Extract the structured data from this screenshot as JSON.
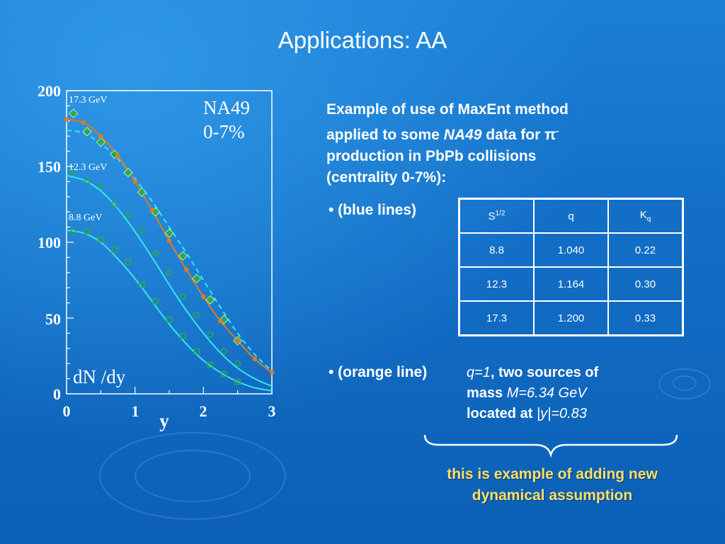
{
  "slide": {
    "title": "Applications: AA"
  },
  "chart_data": {
    "type": "scatter",
    "title": "",
    "xlabel": "y",
    "ylabel": "dN /dy",
    "xlim": [
      0,
      3
    ],
    "ylim": [
      0,
      200
    ],
    "x_ticks": [
      "0",
      "1",
      "2",
      "3"
    ],
    "y_ticks": [
      "0",
      "50",
      "100",
      "150",
      "200"
    ],
    "annotation_lines": [
      "NA49",
      "0-7%"
    ],
    "energy_labels": [
      "17.3 GeV",
      "12.3 GeV",
      "8.8 GeV"
    ],
    "series": [
      {
        "name": "17.3 GeV",
        "marker": "diamond",
        "points": [
          [
            0.1,
            185
          ],
          [
            0.3,
            173
          ],
          [
            0.5,
            166
          ],
          [
            0.7,
            158
          ],
          [
            0.9,
            146
          ],
          [
            1.1,
            133
          ],
          [
            1.3,
            120
          ],
          [
            1.5,
            106
          ],
          [
            1.7,
            91
          ],
          [
            1.9,
            76
          ],
          [
            2.1,
            62
          ],
          [
            2.3,
            49
          ],
          [
            2.5,
            35
          ]
        ],
        "curve": [
          [
            0,
            174
          ],
          [
            0.25,
            172
          ],
          [
            0.5,
            165
          ],
          [
            0.75,
            155
          ],
          [
            1.0,
            142
          ],
          [
            1.25,
            127
          ],
          [
            1.5,
            110
          ],
          [
            1.75,
            93
          ],
          [
            2.0,
            75
          ],
          [
            2.25,
            57
          ],
          [
            2.5,
            40
          ],
          [
            2.75,
            26
          ],
          [
            3.0,
            15
          ]
        ]
      },
      {
        "name": "12.3 GeV",
        "marker": "circle",
        "points": [
          [
            0.1,
            146
          ],
          [
            0.3,
            140
          ],
          [
            0.5,
            137
          ],
          [
            0.7,
            125
          ],
          [
            0.9,
            118
          ],
          [
            1.1,
            108
          ],
          [
            1.3,
            93
          ],
          [
            1.5,
            80
          ],
          [
            1.7,
            64
          ],
          [
            1.9,
            52
          ],
          [
            2.1,
            39
          ],
          [
            2.3,
            28
          ],
          [
            2.5,
            20
          ]
        ],
        "curve": [
          [
            0,
            144
          ],
          [
            0.25,
            141
          ],
          [
            0.5,
            134
          ],
          [
            0.75,
            122
          ],
          [
            1.0,
            107
          ],
          [
            1.25,
            90
          ],
          [
            1.5,
            72
          ],
          [
            1.75,
            55
          ],
          [
            2.0,
            40
          ],
          [
            2.25,
            27
          ],
          [
            2.5,
            17
          ],
          [
            2.75,
            10
          ],
          [
            3.0,
            5
          ]
        ]
      },
      {
        "name": "8.8 GeV",
        "marker": "square",
        "points": [
          [
            0.1,
            107
          ],
          [
            0.3,
            107
          ],
          [
            0.5,
            102
          ],
          [
            0.7,
            95
          ],
          [
            0.9,
            87
          ],
          [
            1.1,
            72
          ],
          [
            1.3,
            61
          ],
          [
            1.5,
            49
          ],
          [
            1.7,
            38
          ],
          [
            1.9,
            28
          ],
          [
            2.1,
            19
          ],
          [
            2.3,
            13
          ],
          [
            2.5,
            8
          ]
        ],
        "curve": [
          [
            0,
            108
          ],
          [
            0.25,
            106
          ],
          [
            0.5,
            100
          ],
          [
            0.75,
            89
          ],
          [
            1.0,
            76
          ],
          [
            1.25,
            61
          ],
          [
            1.5,
            46
          ],
          [
            1.75,
            33
          ],
          [
            2.0,
            22
          ],
          [
            2.25,
            14
          ],
          [
            2.5,
            8
          ],
          [
            2.75,
            4
          ],
          [
            3.0,
            2
          ]
        ]
      },
      {
        "name": "orange",
        "marker": "dot",
        "curve": [
          [
            0,
            181
          ],
          [
            0.25,
            179
          ],
          [
            0.5,
            170
          ],
          [
            0.75,
            157
          ],
          [
            1.0,
            140
          ],
          [
            1.25,
            121
          ],
          [
            1.5,
            101
          ],
          [
            1.75,
            82
          ],
          [
            2.0,
            64
          ],
          [
            2.25,
            48
          ],
          [
            2.5,
            35
          ],
          [
            2.75,
            23
          ],
          [
            3.0,
            14
          ]
        ]
      }
    ],
    "colors": {
      "cyan": "#35e6ee",
      "orange": "#e07a1c",
      "green_marker": "#2ea84a"
    }
  },
  "description": {
    "line1": "Example of use of MaxEnt method",
    "line2a": "applied  to some ",
    "line2b": "NA49",
    "line2c": " data for π",
    "line2sup": "-",
    "line3": "production in PbPb collisions",
    "line4": "(centrality 0-7%):"
  },
  "blue_bullet": "• (blue lines)",
  "table": {
    "headers": [
      "S",
      "q",
      "K"
    ],
    "header_sup": "1/2",
    "header_sub": "q",
    "rows": [
      [
        "8.8",
        "1.040",
        "0.22"
      ],
      [
        "12.3",
        "1.164",
        "0.30"
      ],
      [
        "17.3",
        "1.200",
        "0.33"
      ]
    ]
  },
  "orange_bullet": "• (orange line)",
  "orange_desc": {
    "q": "q=1",
    "text1": ", two sources of",
    "text2": "mass ",
    "mass": "M=6.34 GeV",
    "text3": "located at ",
    "pos": "|y|=0.83"
  },
  "note": {
    "line1": "this is example of adding new",
    "line2": "dynamical assumption"
  }
}
